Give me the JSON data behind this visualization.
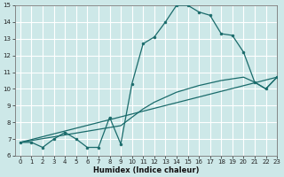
{
  "xlabel": "Humidex (Indice chaleur)",
  "bg_color": "#cde8e8",
  "grid_color": "#ffffff",
  "line_color": "#1a6b6b",
  "line1_x": [
    0,
    1,
    2,
    3,
    4,
    5,
    6,
    7,
    8,
    9,
    10,
    11,
    12,
    13,
    14,
    15,
    16,
    17,
    18,
    19,
    20,
    21,
    22,
    23
  ],
  "line1_y": [
    6.8,
    6.8,
    6.5,
    7.0,
    7.4,
    7.0,
    6.5,
    6.5,
    8.3,
    6.7,
    10.3,
    12.7,
    13.1,
    14.0,
    15.0,
    15.0,
    14.6,
    14.4,
    13.3,
    13.2,
    12.2,
    10.4,
    10.0,
    10.7
  ],
  "line2_x": [
    0,
    23
  ],
  "line2_y": [
    6.8,
    10.7
  ],
  "line3_x": [
    0,
    9,
    10,
    11,
    12,
    13,
    14,
    15,
    16,
    17,
    18,
    19,
    20,
    21,
    22,
    23
  ],
  "line3_y": [
    6.8,
    7.8,
    8.3,
    8.8,
    9.2,
    9.5,
    9.8,
    10.0,
    10.2,
    10.35,
    10.5,
    10.6,
    10.7,
    10.4,
    10.0,
    10.7
  ],
  "xlim": [
    -0.5,
    23
  ],
  "ylim": [
    6,
    15
  ],
  "xticks": [
    0,
    1,
    2,
    3,
    4,
    5,
    6,
    7,
    8,
    9,
    10,
    11,
    12,
    13,
    14,
    15,
    16,
    17,
    18,
    19,
    20,
    21,
    22,
    23
  ],
  "yticks": [
    6,
    7,
    8,
    9,
    10,
    11,
    12,
    13,
    14,
    15
  ]
}
